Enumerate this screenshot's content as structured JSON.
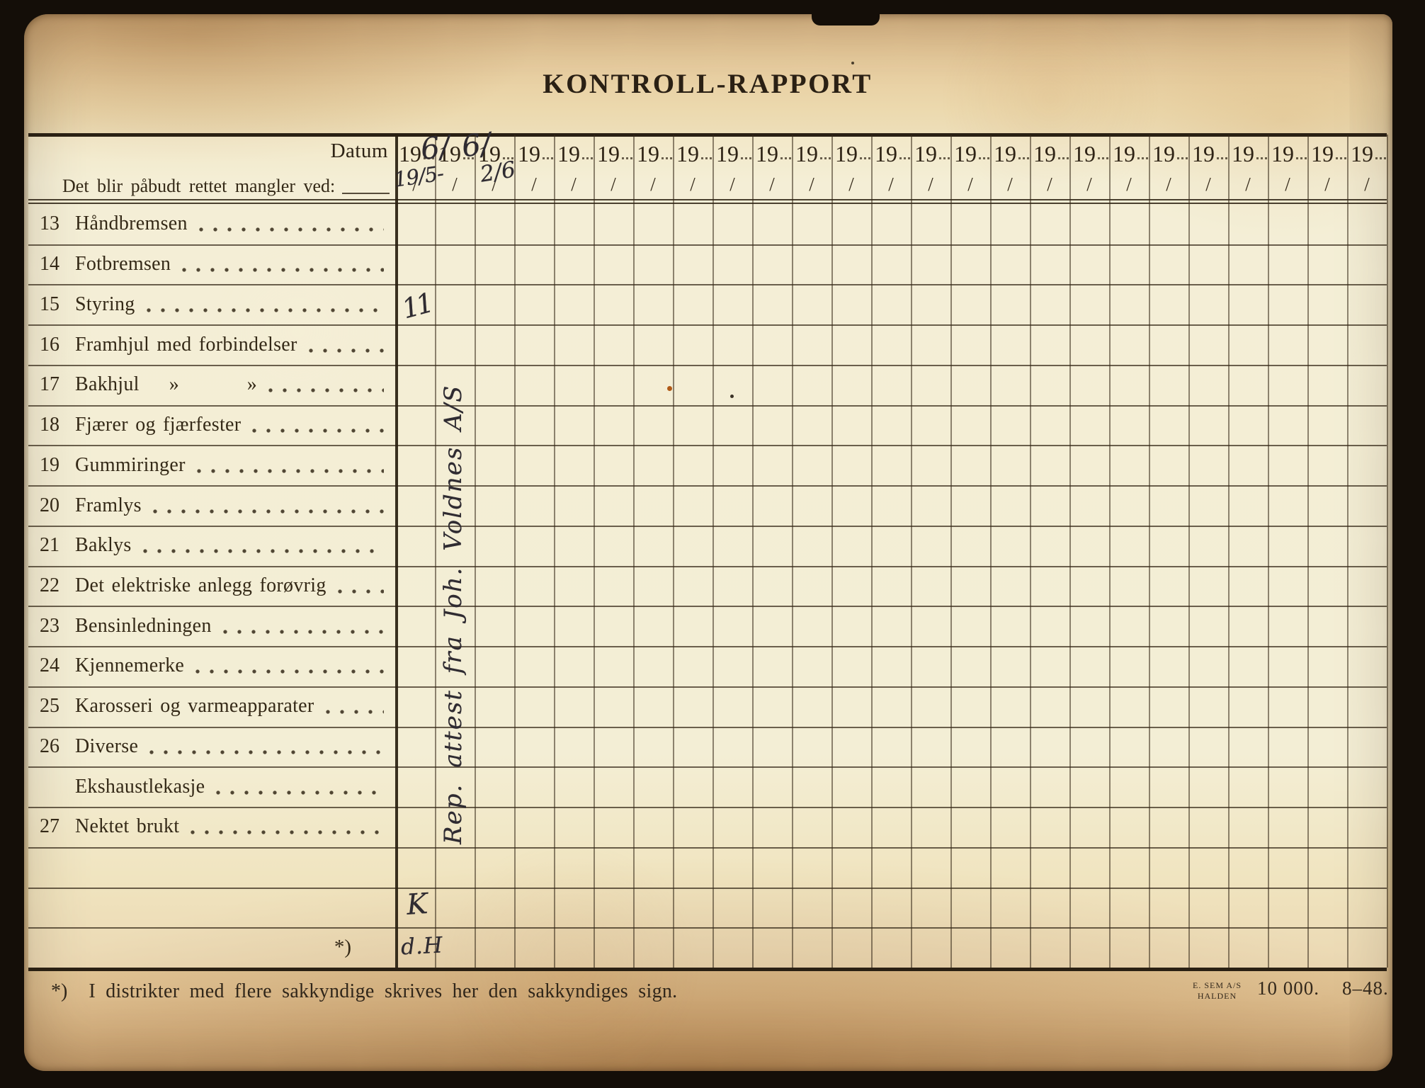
{
  "title": "KONTROLL-RAPPORT",
  "header": {
    "datum_label": "Datum",
    "condition_label": "Det blir påbudt rettet mangler ved:",
    "year_prefix": "19",
    "date_slash": "/",
    "columns": 25
  },
  "handwriting": {
    "year1_suffix": "6/",
    "year2_suffix": "6/",
    "date1": "19/5-",
    "date2": "2/6",
    "styring_mark": "11",
    "vertical_note": "Rep. attest fra Joh. Voldnes A/S",
    "k_mark": "K",
    "sign_mark": "d.H"
  },
  "rows": [
    {
      "num": "13",
      "label": "Håndbremsen"
    },
    {
      "num": "14",
      "label": "Fotbremsen"
    },
    {
      "num": "15",
      "label": "Styring"
    },
    {
      "num": "16",
      "label": "Framhjul med forbindelser"
    },
    {
      "num": "17",
      "label": "Bakhjul",
      "ditto1": "»",
      "ditto2": "»"
    },
    {
      "num": "18",
      "label": "Fjærer og fjærfester"
    },
    {
      "num": "19",
      "label": "Gummiringer"
    },
    {
      "num": "20",
      "label": "Framlys"
    },
    {
      "num": "21",
      "label": "Baklys"
    },
    {
      "num": "22",
      "label": "Det elektriske anlegg forøvrig"
    },
    {
      "num": "23",
      "label": "Bensinledningen"
    },
    {
      "num": "24",
      "label": "Kjennemerke"
    },
    {
      "num": "25",
      "label": "Karosseri og varmeapparater"
    },
    {
      "num": "26",
      "label": "Diverse"
    },
    {
      "num": "",
      "label": "Ekshaustlekasje"
    },
    {
      "num": "27",
      "label": "Nektet brukt"
    },
    {
      "num": "",
      "label": ""
    },
    {
      "num": "",
      "label": ""
    },
    {
      "num": "",
      "label": "",
      "footnote_mark": "*)"
    }
  ],
  "footer": {
    "footnote_mark": "*)",
    "footnote_text": "I distrikter med flere sakkyndige skrives her den sakkyndiges sign.",
    "printer_name": "E. SEM A/S",
    "printer_city": "HALDEN",
    "print_run": "10 000.",
    "print_code": "8–48."
  },
  "colors": {
    "background": "#140e08",
    "paper_tan": "#e6c795",
    "paper_body": "#f0e9ce",
    "printed_ink": "#33281a",
    "handwriting_ink": "#2f2b31"
  }
}
